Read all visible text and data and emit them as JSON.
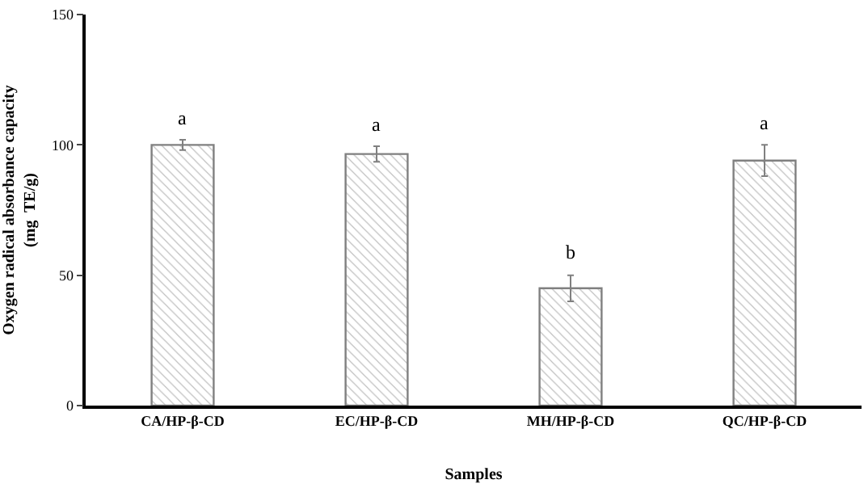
{
  "chart_data": {
    "type": "bar",
    "xlabel": "Samples",
    "ylabel": "Oxygen radical absorbance capacity\n(mg  TE/g)",
    "categories": [
      "CA/HP-β-CD",
      "EC/HP-β-CD",
      "MH/HP-β-CD",
      "QC/HP-β-CD"
    ],
    "values": [
      100,
      96.5,
      45,
      94
    ],
    "errors": [
      2,
      3,
      5,
      6
    ],
    "color": "#808080",
    "ylim": [
      0,
      150
    ],
    "yticks": [
      0,
      50,
      100,
      150
    ],
    "legend": false,
    "annotations": [
      {
        "text": "a",
        "x": "CA/HP-β-CD",
        "y": 104.5
      },
      {
        "text": "a",
        "x": "EC/HP-β-CD",
        "y": 102.5
      },
      {
        "text": "b",
        "x": "MH/HP-β-CD",
        "y": 53
      },
      {
        "text": "a",
        "x": "QC/HP-β-CD",
        "y": 103
      }
    ]
  }
}
